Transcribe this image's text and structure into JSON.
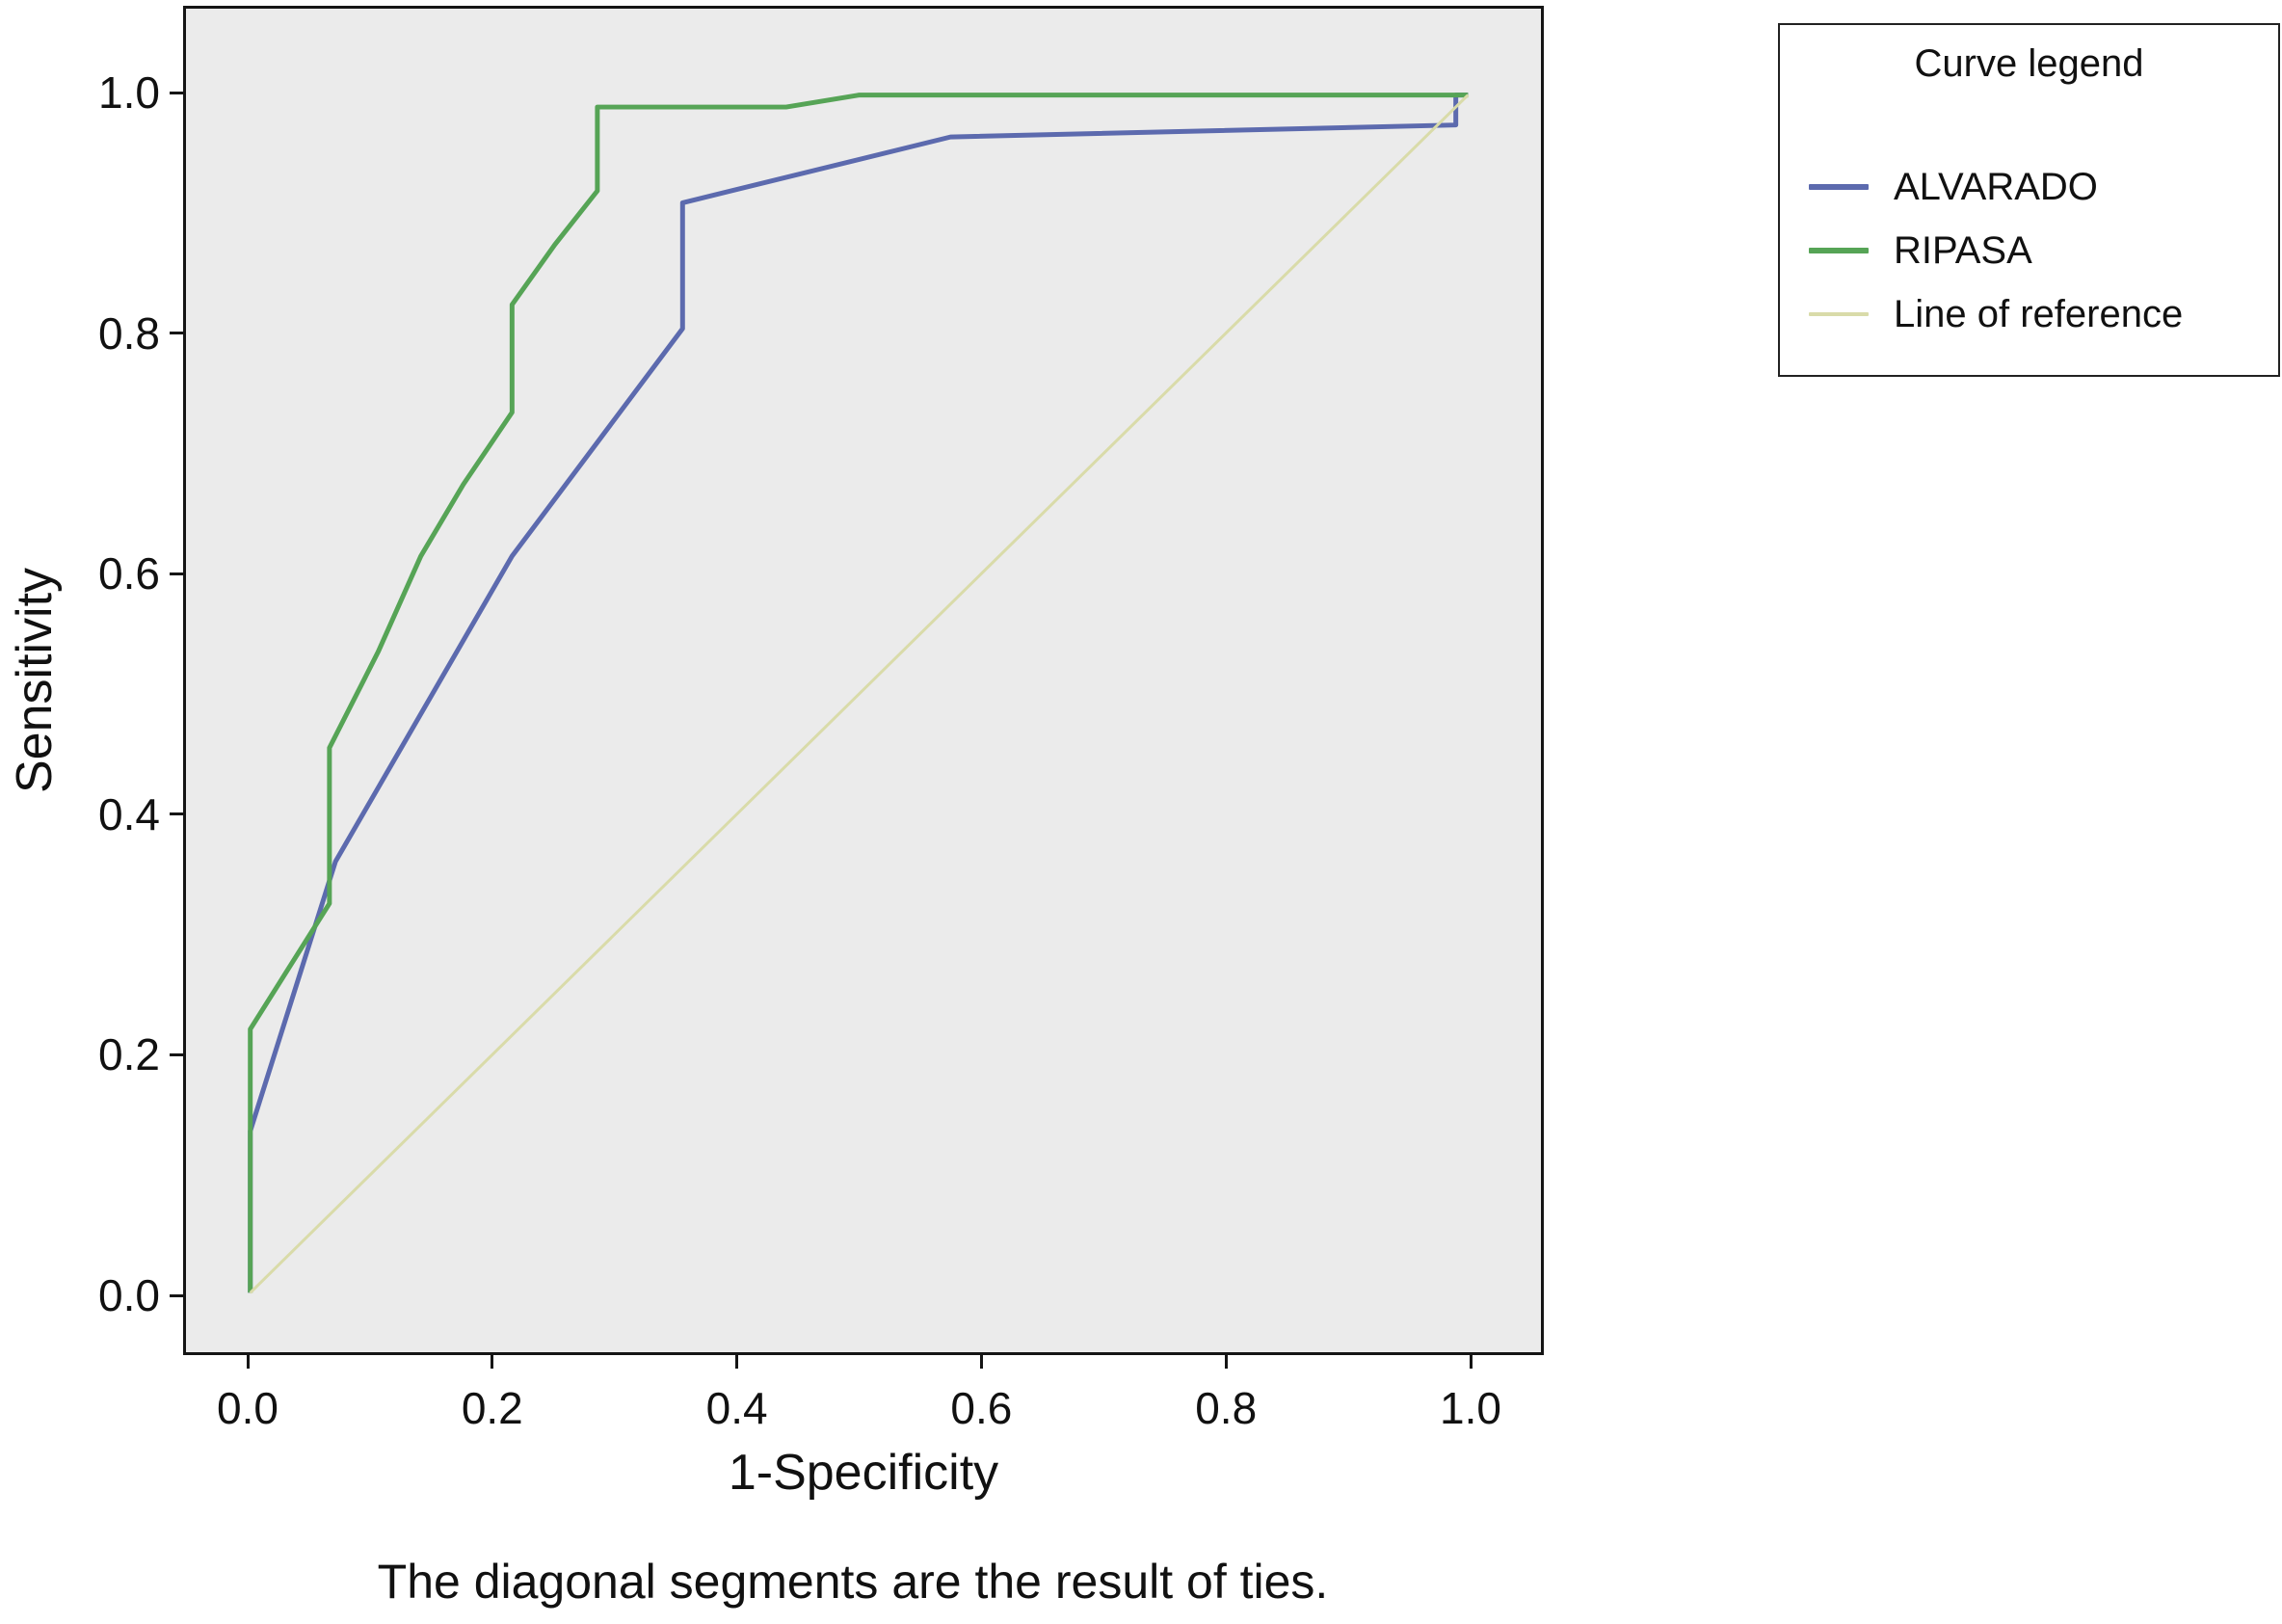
{
  "chart_data": {
    "type": "line",
    "subtype": "roc-curve",
    "title": "",
    "xlabel": "1-Specificity",
    "ylabel": "Sensitivity",
    "xlim": [
      0,
      1
    ],
    "ylim": [
      0,
      1
    ],
    "xticks": [
      "0.0",
      "0.2",
      "0.4",
      "0.6",
      "0.8",
      "1.0"
    ],
    "yticks": [
      "0.0",
      "0.2",
      "0.4",
      "0.6",
      "0.8",
      "1.0"
    ],
    "grid": "off",
    "plot_bg_color": "#ebebeb",
    "legend": {
      "title": "Curve legend",
      "position": "top-right"
    },
    "series": [
      {
        "name": "ALVARADO",
        "color": "#5c6aae",
        "width": 5,
        "points": [
          [
            0,
            0
          ],
          [
            0,
            0.135
          ],
          [
            0.07,
            0.36
          ],
          [
            0.215,
            0.615
          ],
          [
            0.355,
            0.805
          ],
          [
            0.355,
            0.91
          ],
          [
            0.575,
            0.965
          ],
          [
            0.99,
            0.975
          ],
          [
            0.99,
            1.0
          ],
          [
            1,
            1
          ]
        ]
      },
      {
        "name": "RIPASA",
        "color": "#56a456",
        "width": 5,
        "points": [
          [
            0,
            0
          ],
          [
            0,
            0.22
          ],
          [
            0.065,
            0.325
          ],
          [
            0.065,
            0.455
          ],
          [
            0.105,
            0.535
          ],
          [
            0.14,
            0.615
          ],
          [
            0.175,
            0.675
          ],
          [
            0.215,
            0.735
          ],
          [
            0.215,
            0.825
          ],
          [
            0.25,
            0.875
          ],
          [
            0.285,
            0.92
          ],
          [
            0.285,
            0.99
          ],
          [
            0.44,
            0.99
          ],
          [
            0.5,
            1.0
          ],
          [
            1,
            1
          ]
        ]
      },
      {
        "name": "Line of reference",
        "color": "#d9dba9",
        "width": 3,
        "points": [
          [
            0,
            0
          ],
          [
            1,
            1
          ]
        ]
      }
    ],
    "footnote": "The diagonal segments are the result of ties."
  }
}
